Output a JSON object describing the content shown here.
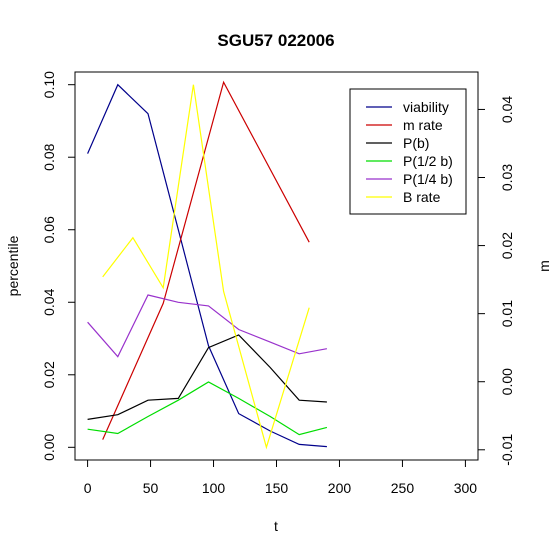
{
  "chart_data": {
    "type": "line",
    "title": "SGU57 022006",
    "xlabel": "t",
    "ylabel": "percentile",
    "y2label": "m",
    "xlim": [
      -10,
      310
    ],
    "ylim": [
      -0.0035,
      0.1035
    ],
    "y2lim": [
      -0.0115,
      0.0455
    ],
    "grid": false,
    "legend_position": "top-right",
    "x_ticks": [
      "0",
      "50",
      "100",
      "150",
      "200",
      "250",
      "300"
    ],
    "y_ticks": [
      "0.00",
      "0.02",
      "0.04",
      "0.06",
      "0.08",
      "0.10"
    ],
    "y2_ticks": [
      "-0.01",
      "0.00",
      "0.01",
      "0.02",
      "0.03",
      "0.04"
    ],
    "series": [
      {
        "name": "viability",
        "color": "#00008B",
        "axis": "left",
        "x": [
          0,
          24,
          48,
          72,
          96,
          120,
          145,
          168,
          190
        ],
        "y": [
          0.081,
          0.1,
          0.092,
          0.06,
          0.028,
          0.0093,
          0.0045,
          0.0008,
          0.0002
        ]
      },
      {
        "name": "m rate",
        "color": "#CC0000",
        "axis": "right",
        "x": [
          12,
          60,
          108,
          176
        ],
        "y": [
          -0.0085,
          0.0115,
          0.044,
          0.0205
        ]
      },
      {
        "name": "P(b)",
        "color": "#000000",
        "axis": "left",
        "x": [
          0,
          24,
          48,
          72,
          96,
          120,
          145,
          168,
          190
        ],
        "y": [
          0.0077,
          0.009,
          0.013,
          0.0135,
          0.0275,
          0.031,
          0.022,
          0.013,
          0.0125
        ]
      },
      {
        "name": "P(1/2 b)",
        "color": "#00DD00",
        "axis": "left",
        "x": [
          0,
          24,
          48,
          72,
          96,
          120,
          145,
          168,
          190
        ],
        "y": [
          0.005,
          0.0038,
          0.0085,
          0.013,
          0.018,
          0.0135,
          0.0085,
          0.0035,
          0.0055
        ]
      },
      {
        "name": "P(1/4 b)",
        "color": "#9932CC",
        "axis": "left",
        "x": [
          0,
          24,
          48,
          72,
          96,
          120,
          145,
          168,
          190
        ],
        "y": [
          0.0345,
          0.025,
          0.042,
          0.04,
          0.039,
          0.0325,
          0.029,
          0.0258,
          0.0272
        ]
      },
      {
        "name": "B rate",
        "color": "#FFFF00",
        "axis": "left",
        "x": [
          12,
          36,
          60,
          84,
          108,
          142,
          176
        ],
        "y": [
          0.047,
          0.0578,
          0.044,
          0.1,
          0.043,
          0.0,
          0.0385
        ]
      }
    ]
  }
}
